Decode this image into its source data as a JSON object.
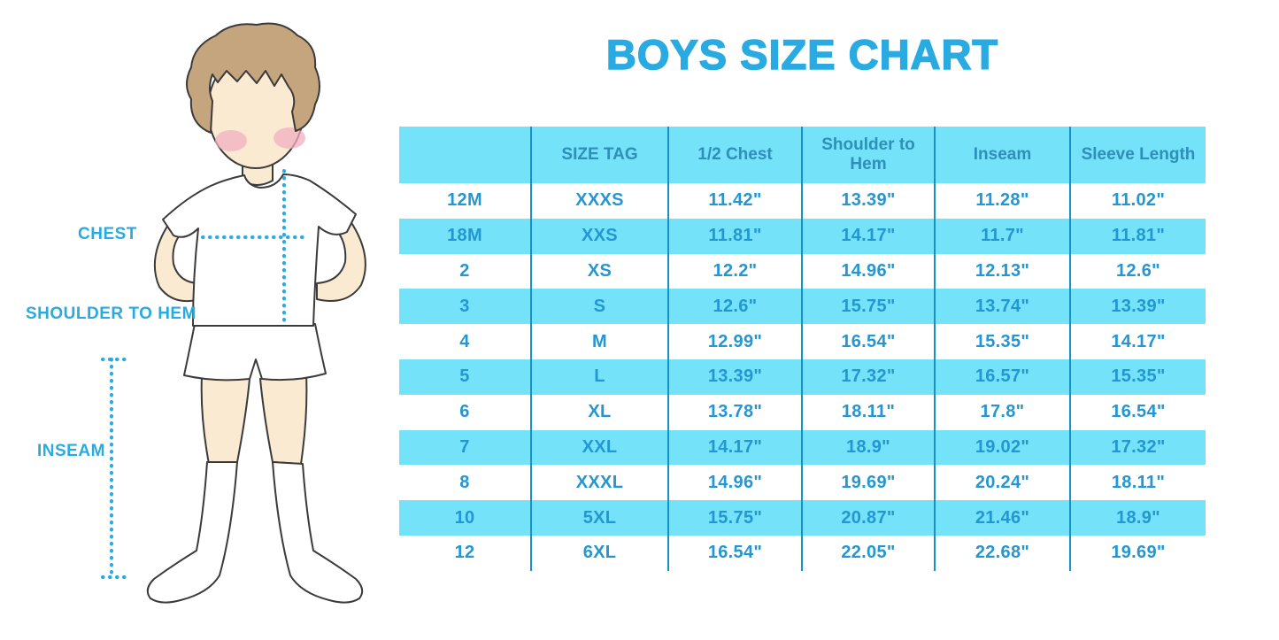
{
  "title": "BOYS SIZE CHART",
  "colors": {
    "accent": "#29ABE2",
    "table_fill": "#74E2F8",
    "divider": "#1791C6",
    "cell_text": "#2496D2",
    "header_text": "#2E8FB8",
    "hair": "#C4A57D",
    "skin": "#FBEAD2",
    "cheek": "#F2AFC0"
  },
  "figure": {
    "labels": {
      "chest": "CHEST",
      "shoulder_to_hem": "SHOULDER TO HEM",
      "inseam": "INSEAM"
    }
  },
  "table": {
    "columns": [
      "",
      "SIZE TAG",
      "1/2 Chest",
      "Shoulder to Hem",
      "Inseam",
      "Sleeve Length"
    ],
    "rows": [
      [
        "12M",
        "XXXS",
        "11.42\"",
        "13.39\"",
        "11.28\"",
        "11.02\""
      ],
      [
        "18M",
        "XXS",
        "11.81\"",
        "14.17\"",
        "11.7\"",
        "11.81\""
      ],
      [
        "2",
        "XS",
        "12.2\"",
        "14.96\"",
        "12.13\"",
        "12.6\""
      ],
      [
        "3",
        "S",
        "12.6\"",
        "15.75\"",
        "13.74\"",
        "13.39\""
      ],
      [
        "4",
        "M",
        "12.99\"",
        "16.54\"",
        "15.35\"",
        "14.17\""
      ],
      [
        "5",
        "L",
        "13.39\"",
        "17.32\"",
        "16.57\"",
        "15.35\""
      ],
      [
        "6",
        "XL",
        "13.78\"",
        "18.11\"",
        "17.8\"",
        "16.54\""
      ],
      [
        "7",
        "XXL",
        "14.17\"",
        "18.9\"",
        "19.02\"",
        "17.32\""
      ],
      [
        "8",
        "XXXL",
        "14.96\"",
        "19.69\"",
        "20.24\"",
        "18.11\""
      ],
      [
        "10",
        "5XL",
        "15.75\"",
        "20.87\"",
        "21.46\"",
        "18.9\""
      ],
      [
        "12",
        "6XL",
        "16.54\"",
        "22.05\"",
        "22.68\"",
        "19.69\""
      ]
    ]
  }
}
